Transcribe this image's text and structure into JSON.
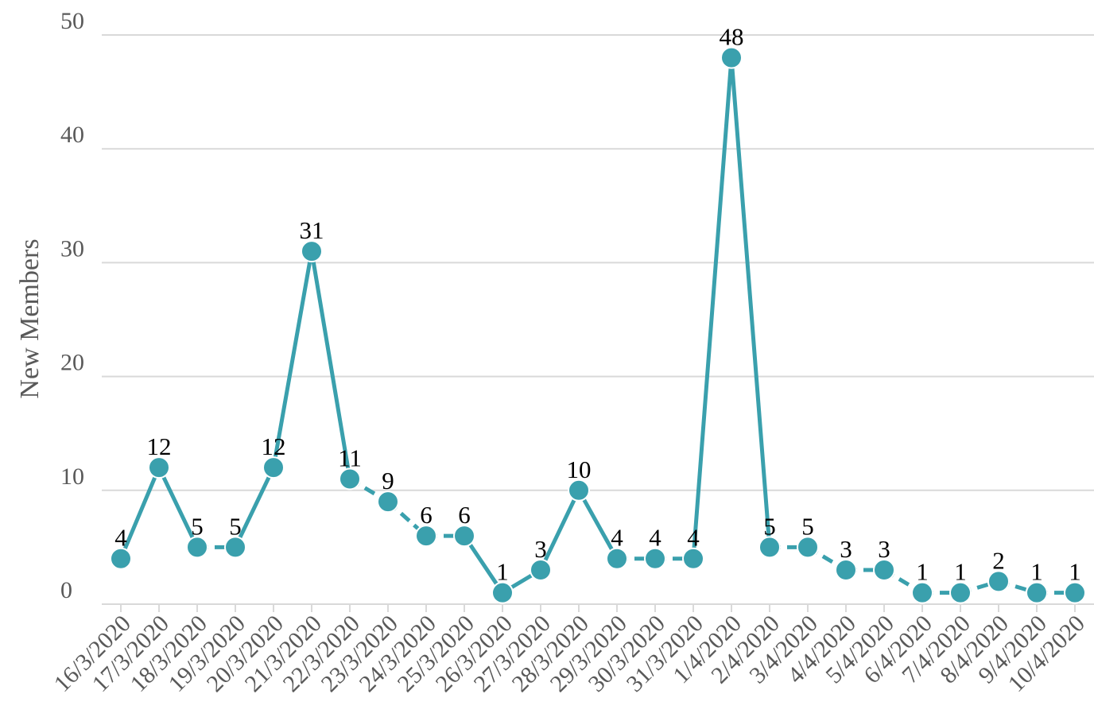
{
  "chart_data": {
    "type": "line",
    "title": "",
    "xlabel": "",
    "ylabel": "New Members",
    "ylim": [
      0,
      50
    ],
    "yticks": [
      0,
      10,
      20,
      30,
      40,
      50
    ],
    "grid": true,
    "legend": "none",
    "line_color": "#3aa0ad",
    "categories": [
      "16/3/2020",
      "17/3/2020",
      "18/3/2020",
      "19/3/2020",
      "20/3/2020",
      "21/3/2020",
      "22/3/2020",
      "23/3/2020",
      "24/3/2020",
      "25/3/2020",
      "26/3/2020",
      "27/3/2020",
      "28/3/2020",
      "29/3/2020",
      "30/3/2020",
      "31/3/2020",
      "1/4/2020",
      "2/4/2020",
      "3/4/2020",
      "4/4/2020",
      "5/4/2020",
      "6/4/2020",
      "7/4/2020",
      "8/4/2020",
      "9/4/2020",
      "10/4/2020"
    ],
    "values": [
      4,
      12,
      5,
      5,
      12,
      31,
      11,
      9,
      6,
      6,
      1,
      3,
      10,
      4,
      4,
      4,
      48,
      5,
      5,
      3,
      3,
      1,
      1,
      2,
      1,
      1
    ],
    "data_labels": [
      "4",
      "12",
      "5",
      "5",
      "12",
      "31",
      "11",
      "9",
      "6",
      "6",
      "1",
      "3",
      "10",
      "4",
      "4",
      "4",
      "48",
      "5",
      "5",
      "3",
      "3",
      "1",
      "1",
      "2",
      "1",
      "1"
    ],
    "dashed_segments_after": [
      2,
      6,
      7,
      8,
      13,
      14,
      17,
      18,
      19,
      20,
      21,
      22,
      23,
      24
    ]
  }
}
